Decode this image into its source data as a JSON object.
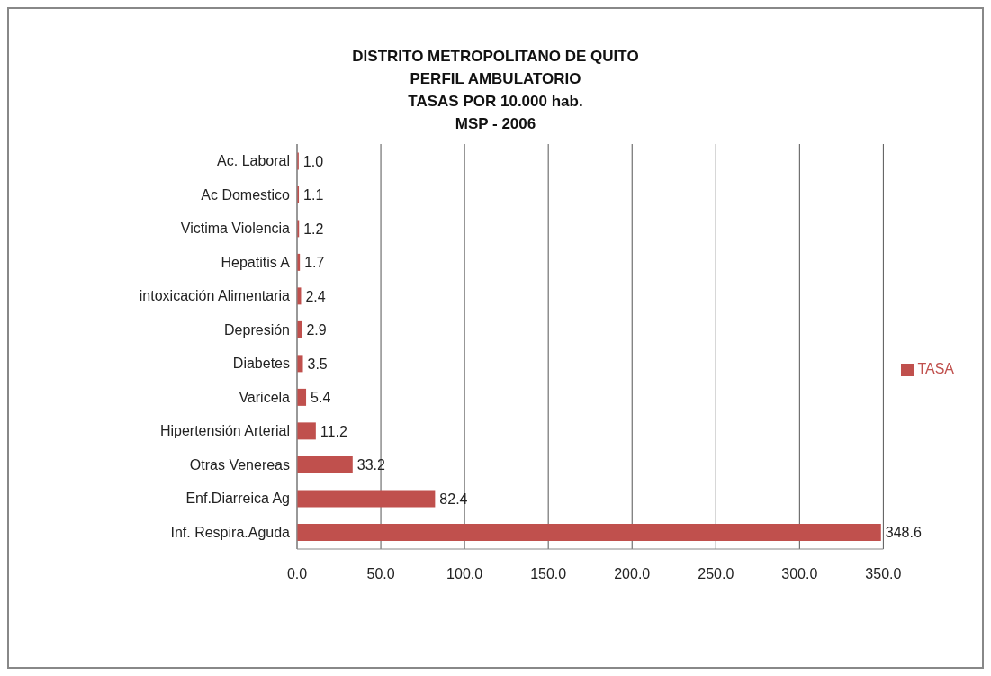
{
  "chart_data": {
    "type": "bar",
    "orientation": "horizontal",
    "title": "DISTRITO METROPOLITANO DE QUITO\nPERFIL AMBULATORIO\nTASAS POR 10.000 hab.\nMSP - 2006",
    "categories": [
      "Ac. Laboral",
      "Ac Domestico",
      "Victima Violencia",
      "Hepatitis A",
      "intoxicación Alimentaria",
      "Depresión",
      "Diabetes",
      "Varicela",
      "Hipertensión Arterial",
      "Otras Venereas",
      "Enf.Diarreica Ag",
      "Inf. Respira.Aguda"
    ],
    "series": [
      {
        "name": "TASA",
        "color": "#c0504d",
        "values": [
          1.0,
          1.1,
          1.2,
          1.7,
          2.4,
          2.9,
          3.5,
          5.4,
          11.2,
          33.2,
          82.4,
          348.6
        ],
        "value_labels": [
          "1.0",
          "1.1",
          "1.2",
          "1.7",
          "2.4",
          "2.9",
          "3.5",
          "5.4",
          "11.2",
          "33.2",
          "82.4",
          "348.6"
        ]
      }
    ],
    "xlim": [
      0,
      350
    ],
    "xticks": [
      {
        "value": 0,
        "label": "0.0"
      },
      {
        "value": 50,
        "label": "50.0"
      },
      {
        "value": 100,
        "label": "100.0"
      },
      {
        "value": 150,
        "label": "150.0"
      },
      {
        "value": 200,
        "label": "200.0"
      },
      {
        "value": 250,
        "label": "250.0"
      },
      {
        "value": 300,
        "label": "300.0"
      },
      {
        "value": 350,
        "label": "350.0"
      }
    ],
    "grid": "x",
    "legend": "right"
  }
}
